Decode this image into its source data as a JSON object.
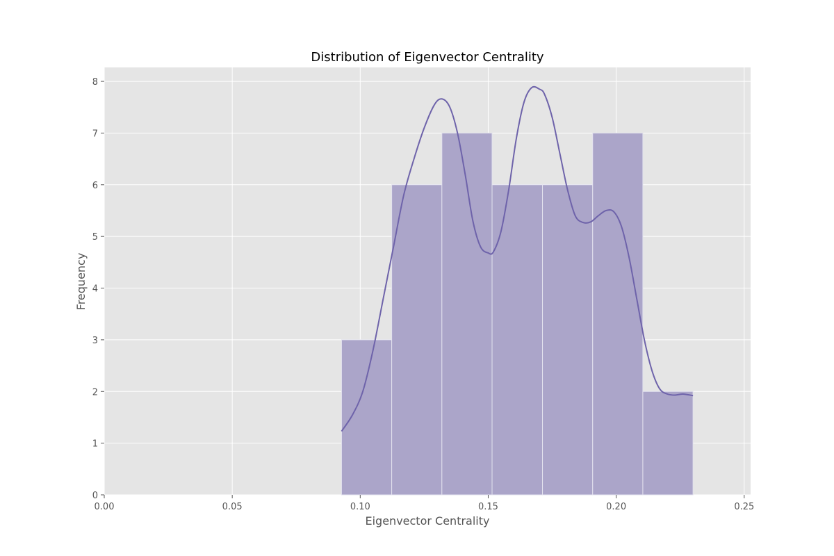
{
  "chart_data": {
    "type": "bar",
    "title": "Distribution of Eigenvector Centrality",
    "xlabel": "Eigenvector Centrality",
    "ylabel": "Frequency",
    "xlim": [
      0.0,
      0.2525
    ],
    "ylim": [
      0,
      8.27
    ],
    "xticks": [
      "0.00",
      "0.05",
      "0.10",
      "0.15",
      "0.20",
      "0.25"
    ],
    "yticks": [
      "0",
      "1",
      "2",
      "3",
      "4",
      "5",
      "6",
      "7",
      "8"
    ],
    "grid": true,
    "bins": [
      {
        "start": 0.0927,
        "end": 0.1123,
        "count": 3
      },
      {
        "start": 0.1123,
        "end": 0.1319,
        "count": 6
      },
      {
        "start": 0.1319,
        "end": 0.1515,
        "count": 7
      },
      {
        "start": 0.1515,
        "end": 0.1712,
        "count": 6
      },
      {
        "start": 0.1712,
        "end": 0.1908,
        "count": 6
      },
      {
        "start": 0.1908,
        "end": 0.2104,
        "count": 7
      },
      {
        "start": 0.2104,
        "end": 0.23,
        "count": 2
      }
    ],
    "kde": {
      "x": [
        0.0927,
        0.097,
        0.101,
        0.105,
        0.109,
        0.113,
        0.117,
        0.121,
        0.125,
        0.129,
        0.132,
        0.135,
        0.138,
        0.141,
        0.144,
        0.147,
        0.15,
        0.152,
        0.155,
        0.158,
        0.161,
        0.164,
        0.167,
        0.17,
        0.172,
        0.175,
        0.178,
        0.181,
        0.184,
        0.187,
        0.19,
        0.193,
        0.196,
        0.199,
        0.202,
        0.205,
        0.208,
        0.211,
        0.214,
        0.217,
        0.22,
        0.223,
        0.226,
        0.23
      ],
      "y": [
        1.23,
        1.55,
        2.0,
        2.8,
        3.8,
        4.8,
        5.8,
        6.5,
        7.1,
        7.55,
        7.66,
        7.5,
        7.0,
        6.2,
        5.3,
        4.8,
        4.68,
        4.7,
        5.1,
        5.9,
        6.9,
        7.6,
        7.88,
        7.85,
        7.75,
        7.3,
        6.6,
        5.9,
        5.4,
        5.27,
        5.28,
        5.4,
        5.5,
        5.48,
        5.2,
        4.6,
        3.8,
        3.0,
        2.4,
        2.05,
        1.95,
        1.93,
        1.95,
        1.92
      ]
    },
    "colors": {
      "bar_fill": "#aba5c9",
      "bar_edge": "#e3e2ee",
      "kde_line": "#6e63aa",
      "plot_bg": "#e5e5e5",
      "grid": "#ffffff"
    }
  }
}
